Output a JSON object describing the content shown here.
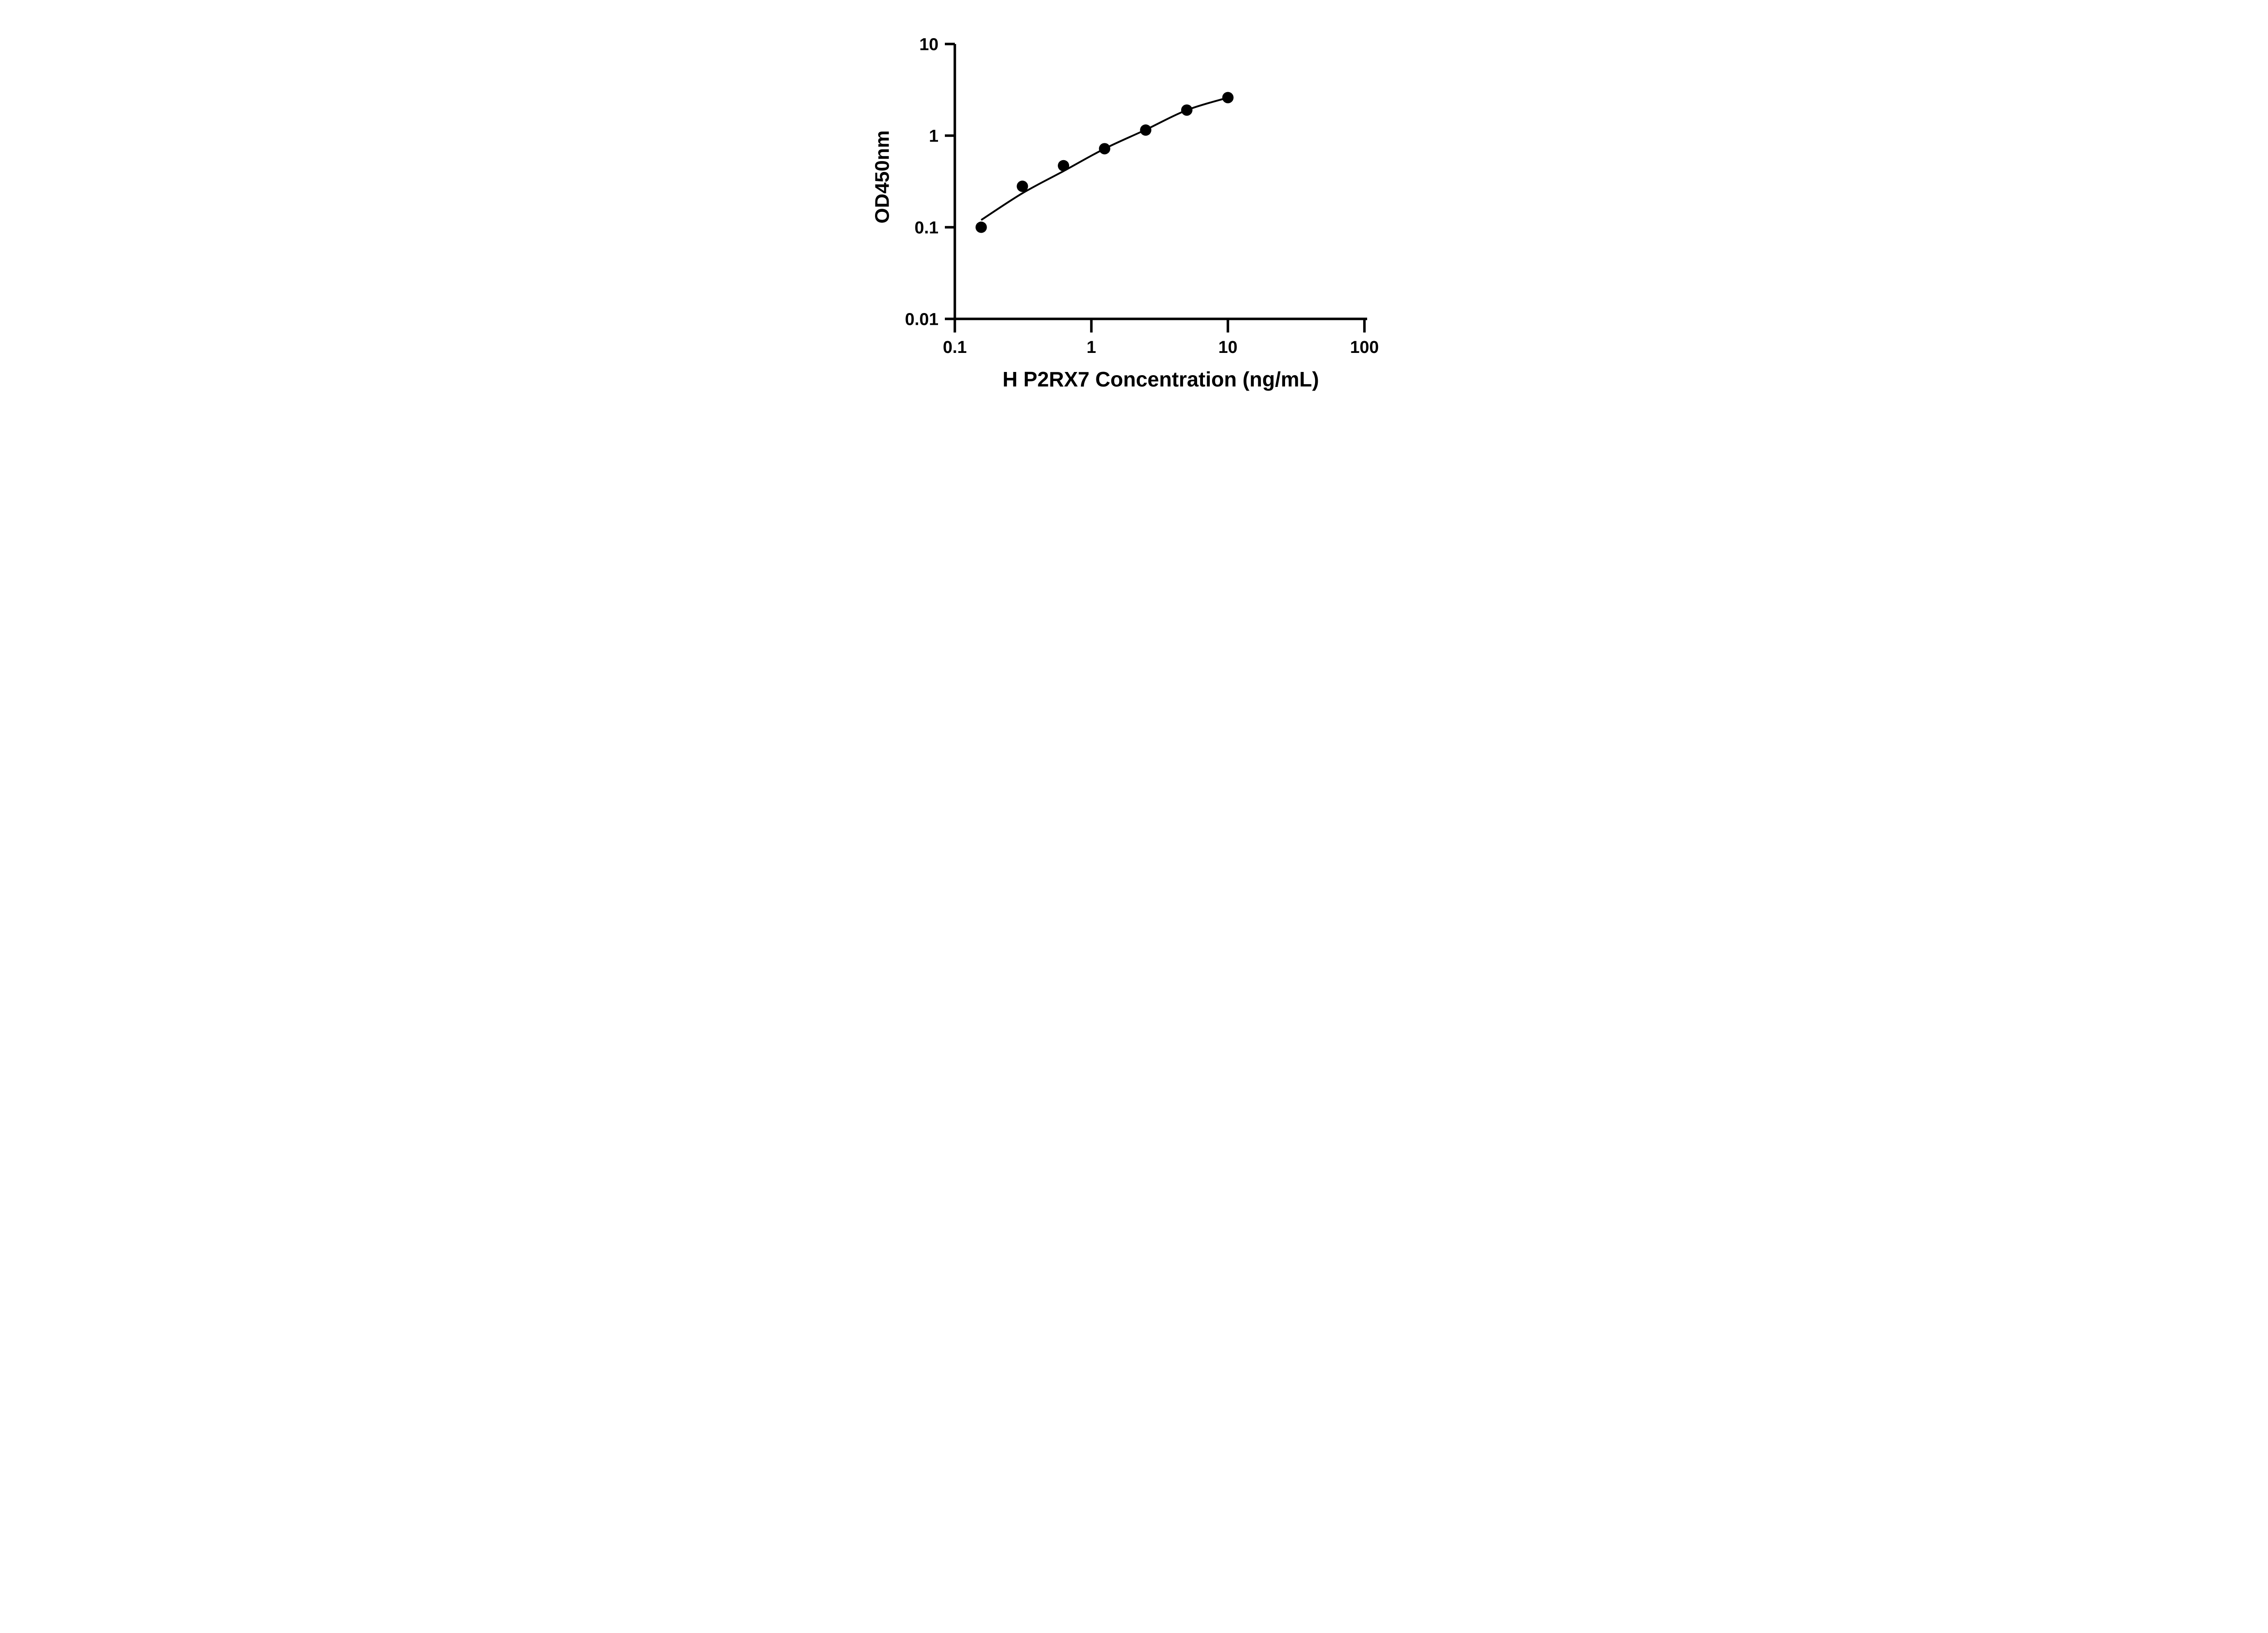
{
  "page": {
    "background_color": "#ffffff",
    "foreground_color": "#000000"
  },
  "chart_data": {
    "type": "scatter",
    "title": "",
    "xlabel": "H P2RX7 Concentration (ng/mL)",
    "ylabel": "OD450nm",
    "x_scale": "log",
    "y_scale": "log",
    "xlim": [
      0.1,
      100
    ],
    "ylim": [
      0.01,
      10
    ],
    "x_ticks": [
      0.1,
      1,
      10,
      100
    ],
    "x_tick_labels": [
      "0.1",
      "1",
      "10",
      "100"
    ],
    "y_ticks": [
      0.01,
      0.1,
      1,
      10
    ],
    "y_tick_labels": [
      "0.01",
      "0.1",
      "1",
      "10"
    ],
    "grid": false,
    "legend": "none",
    "axis_color": "#000000",
    "series": [
      {
        "name": "standard-points",
        "type": "scatter",
        "marker": "filled-circle",
        "color": "#000000",
        "x": [
          0.156,
          0.3125,
          0.625,
          1.25,
          2.5,
          5,
          10
        ],
        "y": [
          0.1,
          0.28,
          0.47,
          0.72,
          1.15,
          1.9,
          2.6
        ]
      },
      {
        "name": "fit-curve",
        "type": "line",
        "color": "#000000",
        "x": [
          0.156,
          0.3125,
          0.625,
          1.25,
          2.5,
          5,
          10
        ],
        "y": [
          0.12,
          0.235,
          0.41,
          0.72,
          1.16,
          1.9,
          2.6
        ]
      }
    ]
  }
}
